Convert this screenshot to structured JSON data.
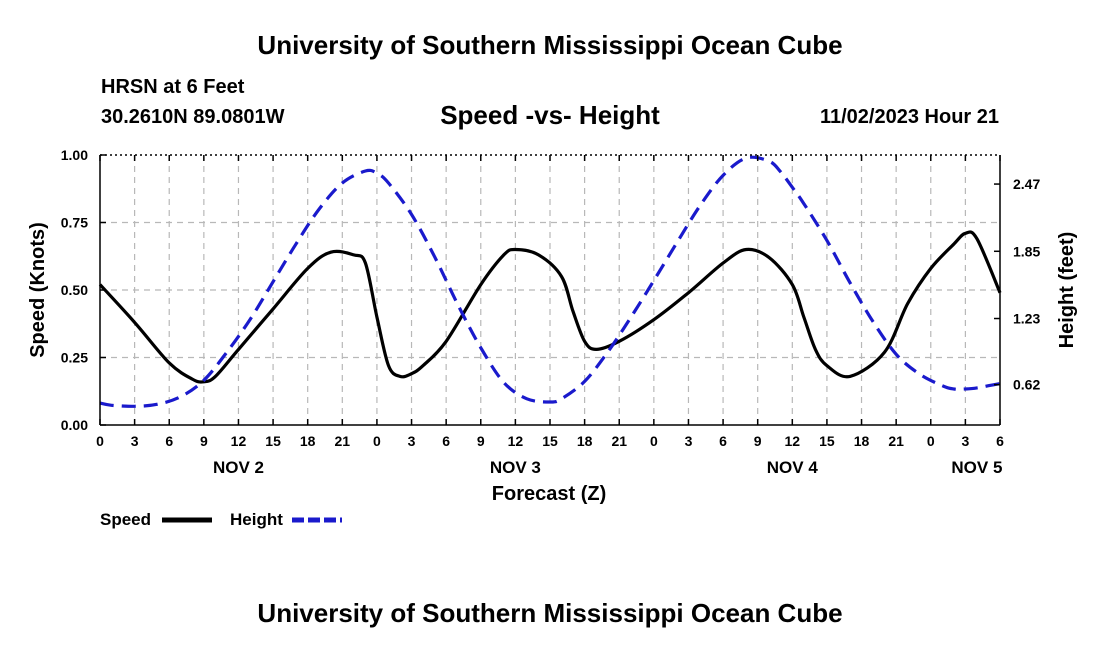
{
  "header": {
    "title": "University of Southern Mississippi Ocean Cube",
    "station": "HRSN at 6 Feet",
    "coords": "30.2610N  89.0801W",
    "subtitle": "Speed -vs- Height",
    "timestamp": "11/02/2023 Hour 21"
  },
  "footer": {
    "title": "University of Southern Mississippi Ocean Cube"
  },
  "colors": {
    "speed": "#000000",
    "height": "#1a1acc",
    "grid": "#b8b8b8"
  },
  "chart_data": {
    "type": "line",
    "title": "Speed -vs- Height",
    "xlabel": "Forecast (Z)",
    "ylabel": "Speed (Knots)",
    "y2label": "Height (feet)",
    "xlim": [
      0,
      78
    ],
    "ylim": [
      0,
      1
    ],
    "y2lim": [
      0.248,
      2.738
    ],
    "x_ticks": [
      0,
      3,
      6,
      9,
      12,
      15,
      18,
      21,
      24,
      27,
      30,
      33,
      36,
      39,
      42,
      45,
      48,
      51,
      54,
      57,
      60,
      63,
      66,
      69,
      72,
      75,
      78
    ],
    "x_tick_labels": [
      "0",
      "3",
      "6",
      "9",
      "12",
      "15",
      "18",
      "21",
      "0",
      "3",
      "6",
      "9",
      "12",
      "15",
      "18",
      "21",
      "0",
      "3",
      "6",
      "9",
      "12",
      "15",
      "18",
      "21",
      "0",
      "3",
      "6"
    ],
    "date_labels": [
      {
        "x": 12,
        "text": "NOV 2"
      },
      {
        "x": 36,
        "text": "NOV 3"
      },
      {
        "x": 60,
        "text": "NOV 4"
      },
      {
        "x": 76,
        "text": "NOV 5"
      }
    ],
    "y_ticks": [
      0,
      0.25,
      0.5,
      0.75,
      1.0
    ],
    "y_tick_labels": [
      "0.00",
      "0.25",
      "0.50",
      "0.75",
      "1.00"
    ],
    "y2_ticks": [
      0.62,
      1.23,
      1.85,
      2.47
    ],
    "y2_tick_labels": [
      "0.62",
      "1.23",
      "1.85",
      "2.47"
    ],
    "grid": true,
    "legend": [
      {
        "label": "Speed",
        "series": "Speed"
      },
      {
        "label": "Height",
        "series": "Height"
      }
    ],
    "series": [
      {
        "name": "Speed",
        "axis": "left",
        "style": "solid",
        "x": [
          0,
          3,
          6,
          8,
          9,
          10,
          12,
          15,
          18,
          20,
          22,
          23,
          24,
          25,
          26,
          27,
          28,
          30,
          33,
          35,
          36,
          38,
          40,
          41,
          42,
          43,
          45,
          48,
          51,
          54,
          56,
          58,
          60,
          61,
          62,
          63,
          65,
          68,
          70,
          72,
          74,
          75,
          76,
          78
        ],
        "values": [
          0.52,
          0.38,
          0.23,
          0.17,
          0.16,
          0.18,
          0.28,
          0.43,
          0.58,
          0.64,
          0.63,
          0.6,
          0.4,
          0.22,
          0.18,
          0.19,
          0.22,
          0.31,
          0.52,
          0.63,
          0.65,
          0.63,
          0.55,
          0.42,
          0.31,
          0.28,
          0.31,
          0.39,
          0.49,
          0.6,
          0.65,
          0.62,
          0.52,
          0.4,
          0.28,
          0.22,
          0.18,
          0.27,
          0.45,
          0.58,
          0.67,
          0.71,
          0.69,
          0.49
        ]
      },
      {
        "name": "Height",
        "axis": "right",
        "style": "dashed",
        "x": [
          0,
          1,
          3,
          5,
          7,
          9,
          11,
          13,
          15,
          17,
          19,
          21,
          23,
          24,
          25,
          27,
          29,
          31,
          33,
          35,
          37,
          39,
          40,
          42,
          44,
          46,
          48,
          50,
          52,
          54,
          56,
          58,
          59,
          60,
          61,
          63,
          65,
          67,
          69,
          71,
          73,
          74,
          75,
          76,
          77,
          78
        ],
        "values": [
          0.45,
          0.43,
          0.42,
          0.44,
          0.51,
          0.66,
          0.92,
          1.22,
          1.57,
          1.92,
          2.24,
          2.48,
          2.59,
          2.57,
          2.48,
          2.19,
          1.8,
          1.36,
          0.96,
          0.64,
          0.49,
          0.46,
          0.49,
          0.65,
          0.92,
          1.24,
          1.58,
          1.93,
          2.27,
          2.55,
          2.71,
          2.68,
          2.58,
          2.44,
          2.29,
          1.95,
          1.56,
          1.2,
          0.9,
          0.72,
          0.61,
          0.58,
          0.58,
          0.59,
          0.61,
          0.63
        ]
      }
    ]
  }
}
